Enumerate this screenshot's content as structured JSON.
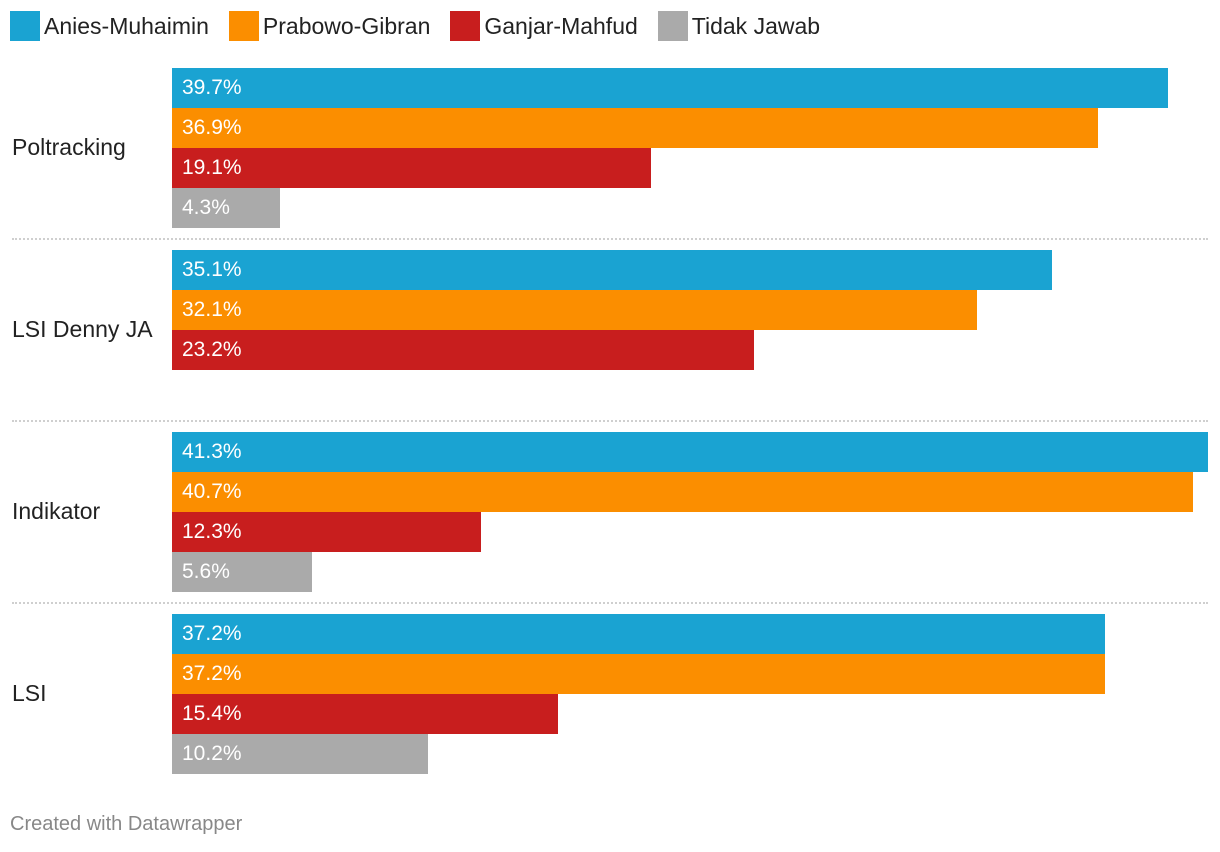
{
  "chart_data": {
    "type": "bar",
    "orientation": "horizontal",
    "categories": [
      "Poltracking",
      "LSI Denny JA",
      "Indikator",
      "LSI"
    ],
    "series": [
      {
        "name": "Anies-Muhaimin",
        "color": "#1aa3d2",
        "values": [
          39.7,
          35.1,
          41.3,
          37.2
        ]
      },
      {
        "name": "Prabowo-Gibran",
        "color": "#fb8e00",
        "values": [
          36.9,
          32.1,
          40.7,
          37.2
        ]
      },
      {
        "name": "Ganjar-Mahfud",
        "color": "#c81e1e",
        "values": [
          19.1,
          23.2,
          12.3,
          15.4
        ]
      },
      {
        "name": "Tidak Jawab",
        "color": "#aaaaaa",
        "values": [
          4.3,
          null,
          5.6,
          10.2
        ]
      }
    ],
    "xlim": [
      0,
      41.3
    ],
    "value_suffix": "%",
    "legend_position": "top-left",
    "grid": false
  },
  "footer": "Created with Datawrapper"
}
